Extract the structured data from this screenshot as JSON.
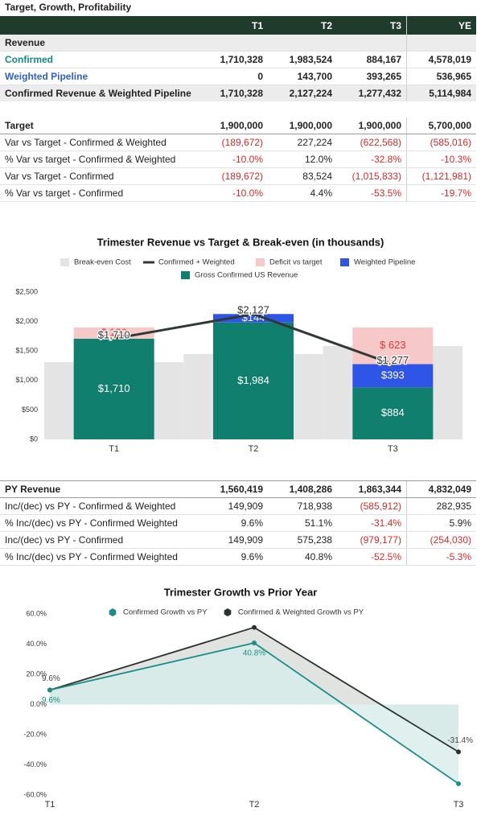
{
  "table1": {
    "title": "Target, Growth, Profitability",
    "columns": [
      "T1",
      "T2",
      "T3",
      "YE"
    ],
    "rows": [
      {
        "label": "Revenue",
        "cells": [],
        "shaded": true,
        "bold": true
      },
      {
        "label": "Confirmed",
        "cells": [
          "1,710,328",
          "1,983,524",
          "884,167",
          "4,578,019"
        ],
        "bold": true,
        "label_color": "#138a80"
      },
      {
        "label": "Weighted Pipeline",
        "cells": [
          "0",
          "143,700",
          "393,265",
          "536,965"
        ],
        "bold": true,
        "label_color": "#2f5fd0"
      },
      {
        "label": "Confirmed Revenue & Weighted Pipeline",
        "cells": [
          "1,710,328",
          "2,127,224",
          "1,277,432",
          "5,114,984"
        ],
        "bold": true,
        "shaded": true
      },
      {
        "label": "Target",
        "cells": [
          "1,900,000",
          "1,900,000",
          "1,900,000",
          "5,700,000"
        ],
        "bold": true
      },
      {
        "label": "Var vs Target - Confirmed & Weighted",
        "cells": [
          "(189,672)",
          "227,224",
          "(622,568)",
          "(585,016)"
        ]
      },
      {
        "label": "% Var vs target - Confirmed & Weighted",
        "cells": [
          "-10.0%",
          "12.0%",
          "-32.8%",
          "-10.3%"
        ]
      },
      {
        "label": "Var vs Target - Confirmed",
        "cells": [
          "(189,672)",
          "83,524",
          "(1,015,833)",
          "(1,121,981)"
        ]
      },
      {
        "label": "% Var vs target - Confirmed",
        "cells": [
          "-10.0%",
          "4.4%",
          "-53.5%",
          "-19.7%"
        ]
      }
    ]
  },
  "table2": {
    "rows": [
      {
        "label": "PY Revenue",
        "cells": [
          "1,560,419",
          "1,408,286",
          "1,863,344",
          "4,832,049"
        ],
        "bold": true
      },
      {
        "label": "Inc/(dec) vs PY - Confirmed & Weighted",
        "cells": [
          "149,909",
          "718,938",
          "(585,912)",
          "282,935"
        ]
      },
      {
        "label": "% Inc/(dec) vs PY - Confirmed Weighted",
        "cells": [
          "9.6%",
          "51.1%",
          "-31.4%",
          "5.9%"
        ]
      },
      {
        "label": "Inc/(dec) vs PY - Confirmed",
        "cells": [
          "149,909",
          "575,238",
          "(979,177)",
          "(254,030)"
        ]
      },
      {
        "label": "% Inc/(dec) vs PY - Confirmed Weighted",
        "cells": [
          "9.6%",
          "40.8%",
          "-52.5%",
          "-5.3%"
        ]
      }
    ]
  },
  "chart_data": [
    {
      "type": "bar",
      "title": "Trimester Revenue vs Target & Break-even (in thousands)",
      "categories": [
        "T1",
        "T2",
        "T3"
      ],
      "ylim": [
        0,
        2500
      ],
      "yticks": [
        {
          "value": 0,
          "label": "$0"
        },
        {
          "value": 500,
          "label": "$500"
        },
        {
          "value": 1000,
          "label": "$1,000"
        },
        {
          "value": 1500,
          "label": "$1,500"
        },
        {
          "value": 2000,
          "label": "$2,000"
        },
        {
          "value": 2500,
          "label": "$2,500"
        }
      ],
      "series": [
        {
          "name": "Break-even Cost",
          "type": "step",
          "color": "#e4e4e4",
          "values": [
            1310,
            1450,
            1585
          ]
        },
        {
          "name": "Confirmed + Weighted",
          "type": "line",
          "color": "#2f3a35",
          "values": [
            1710,
            2127,
            1277
          ],
          "value_labels": [
            "$1,710",
            "$2,127",
            "$1,277"
          ]
        },
        {
          "name": "Deficit vs target",
          "type": "bar",
          "color": "#f6c8c8",
          "values": [
            190,
            0,
            623
          ],
          "value_labels": [
            "$ 190",
            null,
            "$ 623"
          ]
        },
        {
          "name": "Weighted Pipeline",
          "type": "bar",
          "color": "#2f55e6",
          "values": [
            0,
            144,
            393
          ],
          "value_labels": [
            null,
            "$144",
            "$393"
          ]
        },
        {
          "name": "Gross Confirmed US Revenue",
          "type": "bar",
          "color": "#107f6e",
          "values": [
            1710,
            1984,
            884
          ],
          "value_labels": [
            "$1,710",
            "$1,984",
            "$884"
          ]
        }
      ]
    },
    {
      "type": "line",
      "title": "Trimester Growth vs Prior Year",
      "categories": [
        "T1",
        "T2",
        "T3"
      ],
      "ylim": [
        -60,
        60
      ],
      "yticks": [
        {
          "value": -60,
          "label": "-60.0%"
        },
        {
          "value": -40,
          "label": "-40.0%"
        },
        {
          "value": -20,
          "label": "-20.0%"
        },
        {
          "value": 0,
          "label": "0.0%"
        },
        {
          "value": 20,
          "label": "20.0%"
        },
        {
          "value": 40,
          "label": "40.0%"
        },
        {
          "value": 60,
          "label": "60.0%"
        }
      ],
      "series": [
        {
          "name": "Confirmed Growth vs PY",
          "color": "#1b8f87",
          "fill": "#d7ecea",
          "values": [
            9.6,
            40.8,
            -52.5
          ],
          "value_labels": [
            "9.6%",
            "40.8%",
            null
          ]
        },
        {
          "name": "Confirmed & Weighted Growth vs PY",
          "color": "#2c332f",
          "fill": "#d9dcda",
          "values": [
            9.6,
            51.1,
            -31.4
          ],
          "value_labels": [
            "9.6%",
            null,
            "-31.4%"
          ]
        }
      ]
    }
  ]
}
